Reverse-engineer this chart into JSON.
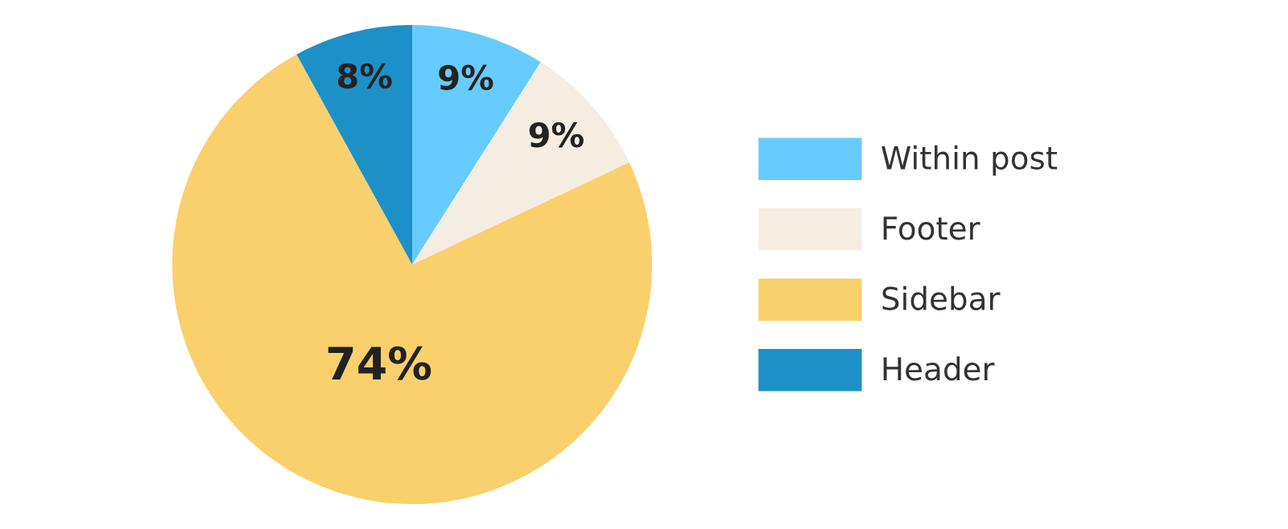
{
  "chart_data": {
    "type": "pie",
    "categories": [
      "Within post",
      "Footer",
      "Sidebar",
      "Header"
    ],
    "values": [
      9,
      9,
      74,
      8
    ],
    "colors": [
      "#66ccff",
      "#f5ece2",
      "#f9d06c",
      "#1e90c8"
    ],
    "value_labels": [
      "9%",
      "9%",
      "74%",
      "8%"
    ],
    "legend": "right"
  }
}
